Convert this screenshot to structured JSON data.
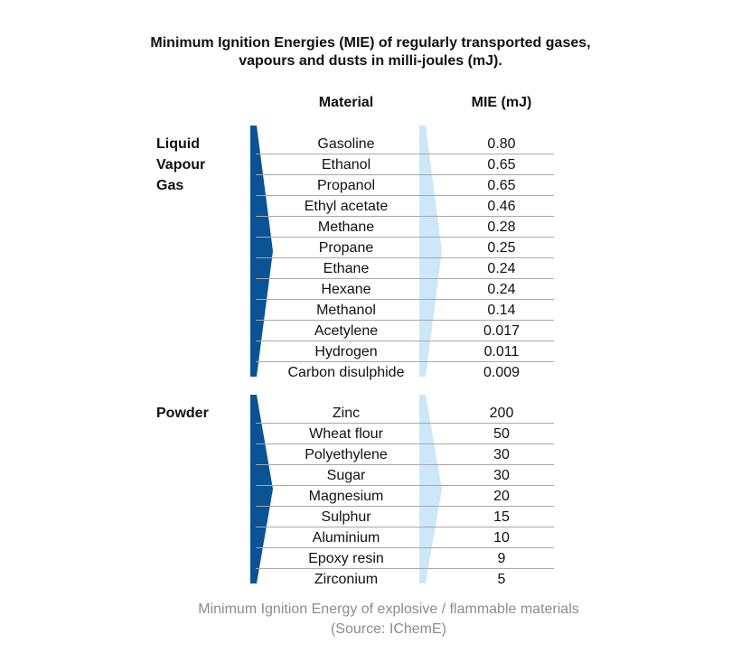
{
  "title": "Minimum Ignition Energies (MIE) of regularly transported gases, vapours and dusts in milli-joules (mJ).",
  "headers": {
    "material": "Material",
    "mie": "MIE (mJ)"
  },
  "groups": [
    {
      "label_lines": [
        "Liquid",
        "Vapour",
        "Gas"
      ],
      "rows": [
        {
          "material": "Gasoline",
          "mie": "0.80"
        },
        {
          "material": "Ethanol",
          "mie": "0.65"
        },
        {
          "material": "Propanol",
          "mie": "0.65"
        },
        {
          "material": "Ethyl acetate",
          "mie": "0.46"
        },
        {
          "material": "Methane",
          "mie": "0.28"
        },
        {
          "material": "Propane",
          "mie": "0.25"
        },
        {
          "material": "Ethane",
          "mie": "0.24"
        },
        {
          "material": "Hexane",
          "mie": "0.24"
        },
        {
          "material": "Methanol",
          "mie": "0.14"
        },
        {
          "material": "Acetylene",
          "mie": "0.017"
        },
        {
          "material": "Hydrogen",
          "mie": "0.011"
        },
        {
          "material": "Carbon disulphide",
          "mie": "0.009"
        }
      ]
    },
    {
      "label_lines": [
        "Powder"
      ],
      "rows": [
        {
          "material": "Zinc",
          "mie": "200"
        },
        {
          "material": "Wheat flour",
          "mie": "50"
        },
        {
          "material": "Polyethylene",
          "mie": "30"
        },
        {
          "material": "Sugar",
          "mie": "30"
        },
        {
          "material": "Magnesium",
          "mie": "20"
        },
        {
          "material": "Sulphur",
          "mie": "15"
        },
        {
          "material": "Aluminium",
          "mie": "10"
        },
        {
          "material": "Epoxy resin",
          "mie": "9"
        },
        {
          "material": "Zirconium",
          "mie": "5"
        }
      ]
    }
  ],
  "caption": "Minimum Ignition Energy of explosive / flammable materials (Source: IChemE)",
  "colors": {
    "dark_arrow": "#0a5394",
    "light_arrow": "#cce7f7",
    "row_line": "#a8a8a8",
    "caption": "#8c8c8c"
  }
}
